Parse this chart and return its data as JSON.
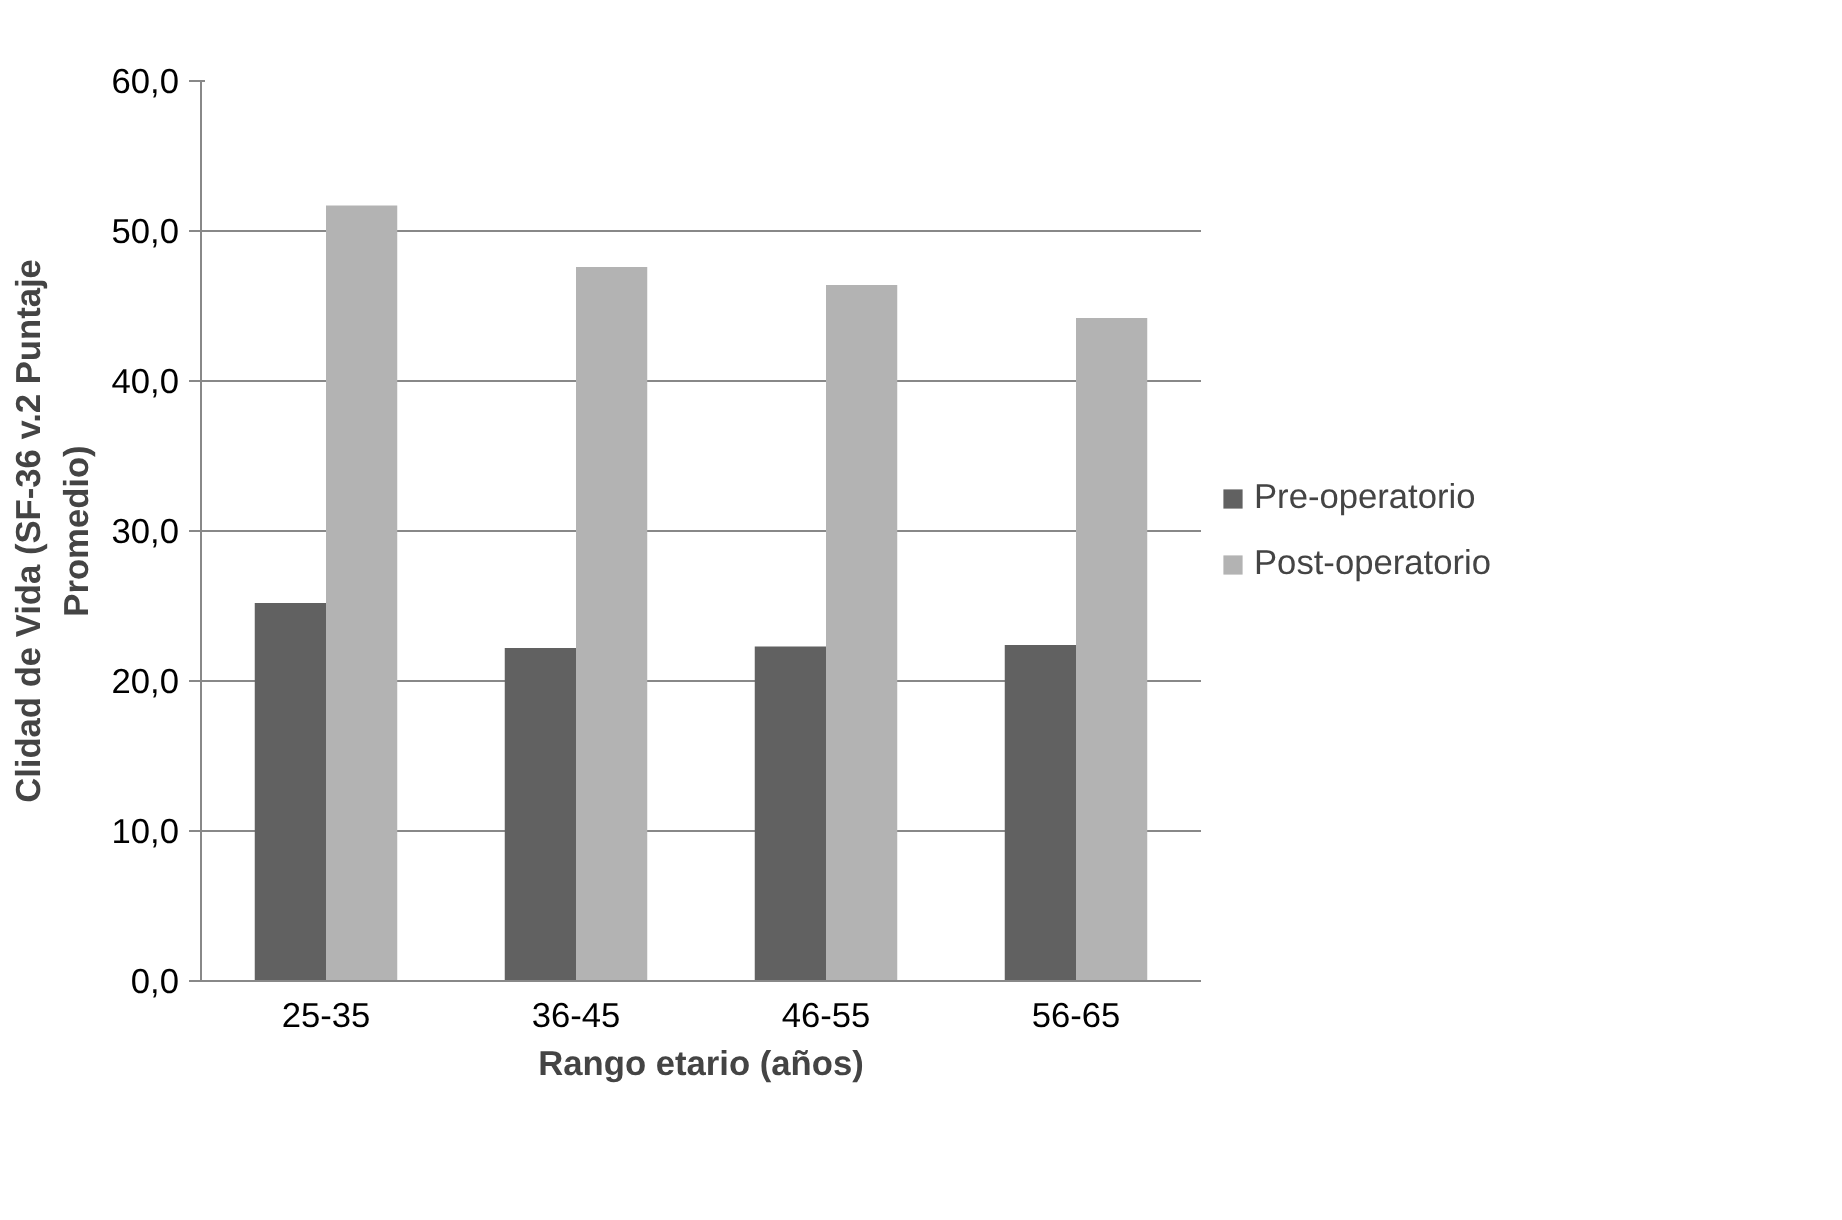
{
  "chart_data": {
    "type": "bar",
    "xlabel": "Rango etario (años)",
    "ylabel": "Clidad de Vida (SF-36 v.2 Puntaje Promedio)",
    "categories": [
      "25-35",
      "36-45",
      "46-55",
      "56-65"
    ],
    "series": [
      {
        "name": "Pre-operatorio",
        "color": "#616161",
        "values": [
          25.2,
          22.2,
          22.3,
          22.4
        ]
      },
      {
        "name": "Post-operatorio",
        "color": "#b3b3b3",
        "values": [
          51.7,
          47.6,
          46.4,
          44.2
        ]
      }
    ],
    "ylim": [
      0,
      60
    ],
    "yticks": [
      {
        "value": 0,
        "label": "0,0"
      },
      {
        "value": 10,
        "label": "10,0"
      },
      {
        "value": 20,
        "label": "20,0"
      },
      {
        "value": 30,
        "label": "30,0"
      },
      {
        "value": 40,
        "label": "40,0"
      },
      {
        "value": 50,
        "label": "50,0"
      },
      {
        "value": 60,
        "label": "60,0"
      }
    ],
    "grid": "y",
    "legend": "right"
  }
}
